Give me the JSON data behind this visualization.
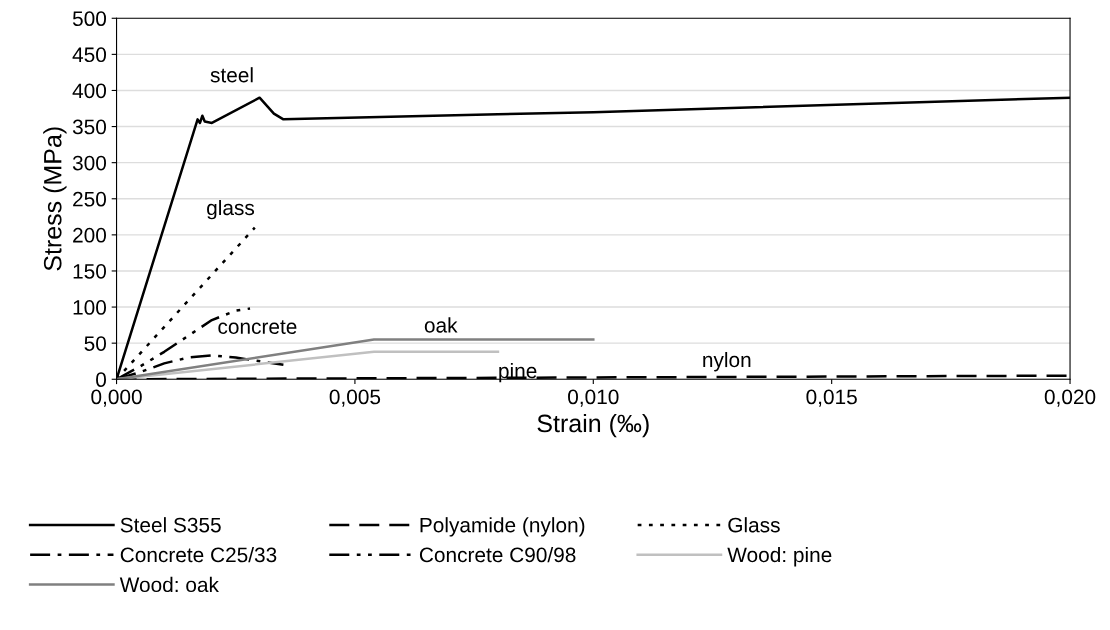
{
  "chart_data": {
    "type": "line",
    "xlabel": "Strain (‰)",
    "ylabel": "Stress (MPa)",
    "xlim": [
      0,
      0.02
    ],
    "ylim": [
      0,
      500
    ],
    "xticks": [
      {
        "value": 0,
        "label": "0,000"
      },
      {
        "value": 0.005,
        "label": "0,005"
      },
      {
        "value": 0.01,
        "label": "0,010"
      },
      {
        "value": 0.015,
        "label": "0,015"
      },
      {
        "value": 0.02,
        "label": "0,020"
      }
    ],
    "yticks": [
      0,
      50,
      100,
      150,
      200,
      250,
      300,
      350,
      400,
      450,
      500
    ],
    "grid": "y",
    "legend": "bottom",
    "marker": "none",
    "series": [
      {
        "name": "Steel S355",
        "color": "#000000",
        "line_style": "solid",
        "x": [
          0,
          0.0017,
          0.00175,
          0.0018,
          0.00185,
          0.002,
          0.003,
          0.0033,
          0.0035,
          0.008,
          0.01,
          0.02
        ],
        "values": [
          0,
          360,
          355,
          365,
          357,
          355,
          390,
          368,
          360,
          367,
          370,
          390
        ]
      },
      {
        "name": "Polyamide (nylon)",
        "color": "#000000",
        "line_style": "dashed",
        "x": [
          0,
          0.02
        ],
        "values": [
          0,
          5
        ]
      },
      {
        "name": "Glass",
        "color": "#000000",
        "line_style": "dotted",
        "x": [
          0,
          0.0029
        ],
        "values": [
          0,
          210
        ]
      },
      {
        "name": "Concrete C25/33",
        "color": "#000000",
        "line_style": "dashdot",
        "x": [
          0,
          0.0005,
          0.001,
          0.0015,
          0.002,
          0.0025,
          0.0035
        ],
        "values": [
          0,
          10,
          22,
          30,
          33,
          30,
          20
        ]
      },
      {
        "name": "Concrete C90/98",
        "color": "#000000",
        "line_style": "dashdotdot",
        "x": [
          0,
          0.0005,
          0.001,
          0.0015,
          0.002,
          0.0025,
          0.0028
        ],
        "values": [
          0,
          18,
          38,
          60,
          82,
          95,
          98
        ]
      },
      {
        "name": "Wood: pine",
        "color": "#c0c0c0",
        "line_style": "solid",
        "x": [
          0,
          0.0054,
          0.008
        ],
        "values": [
          0,
          38,
          38
        ]
      },
      {
        "name": "Wood: oak",
        "color": "#808080",
        "line_style": "solid",
        "x": [
          0,
          0.0054,
          0.01
        ],
        "values": [
          0,
          55,
          55
        ]
      }
    ],
    "annotations": [
      {
        "text": "steel",
        "x": 0.003,
        "y": 390
      },
      {
        "text": "glass",
        "x": 0.0029,
        "y": 210
      },
      {
        "text": "concrete",
        "x": 0.002,
        "y": 82
      },
      {
        "text": "oak",
        "x": 0.0068,
        "y": 55
      },
      {
        "text": "pine",
        "x": 0.008,
        "y": 38
      },
      {
        "text": "nylon",
        "x": 0.0128,
        "y": 3.2
      }
    ]
  }
}
